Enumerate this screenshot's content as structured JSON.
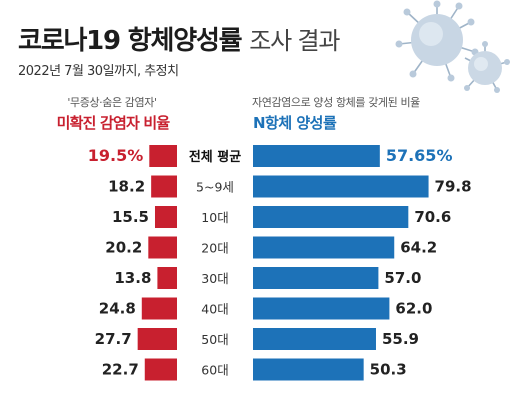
{
  "header": {
    "title_bold": "코로나19 항체양성률",
    "title_light": "조사 결과",
    "subtitle": "2022년 7월 30일까지, 추정치"
  },
  "left_panel": {
    "caption": "'무증상·숨은 감염자'",
    "heading": "미확진 감염자 비율"
  },
  "right_panel": {
    "caption": "자연감염으로 양성 항체를 갖게된 비율",
    "heading": "N항체 양성률"
  },
  "icons": [
    "virus-icon"
  ],
  "colors": {
    "red": "#c8202f",
    "blue": "#1d72b8",
    "text": "#222222",
    "grey_label": "#555555"
  },
  "chart_data": {
    "type": "bar",
    "categories": [
      "전체 평균",
      "5~9세",
      "10대",
      "20대",
      "30대",
      "40대",
      "50대",
      "60대"
    ],
    "series": [
      {
        "name": "미확진 감염자 비율",
        "values": [
          19.5,
          18.2,
          15.5,
          20.2,
          13.8,
          24.8,
          27.7,
          22.7
        ],
        "labels": [
          "19.5%",
          "18.2",
          "15.5",
          "20.2",
          "13.8",
          "24.8",
          "27.7",
          "22.7"
        ]
      },
      {
        "name": "N항체 양성률",
        "values": [
          57.65,
          79.8,
          70.6,
          64.2,
          57.0,
          62.0,
          55.9,
          50.3
        ],
        "labels": [
          "57.65%",
          "79.8",
          "70.6",
          "64.2",
          "57.0",
          "62.0",
          "55.9",
          "50.3"
        ]
      }
    ],
    "highlight_category": "전체 평균"
  }
}
